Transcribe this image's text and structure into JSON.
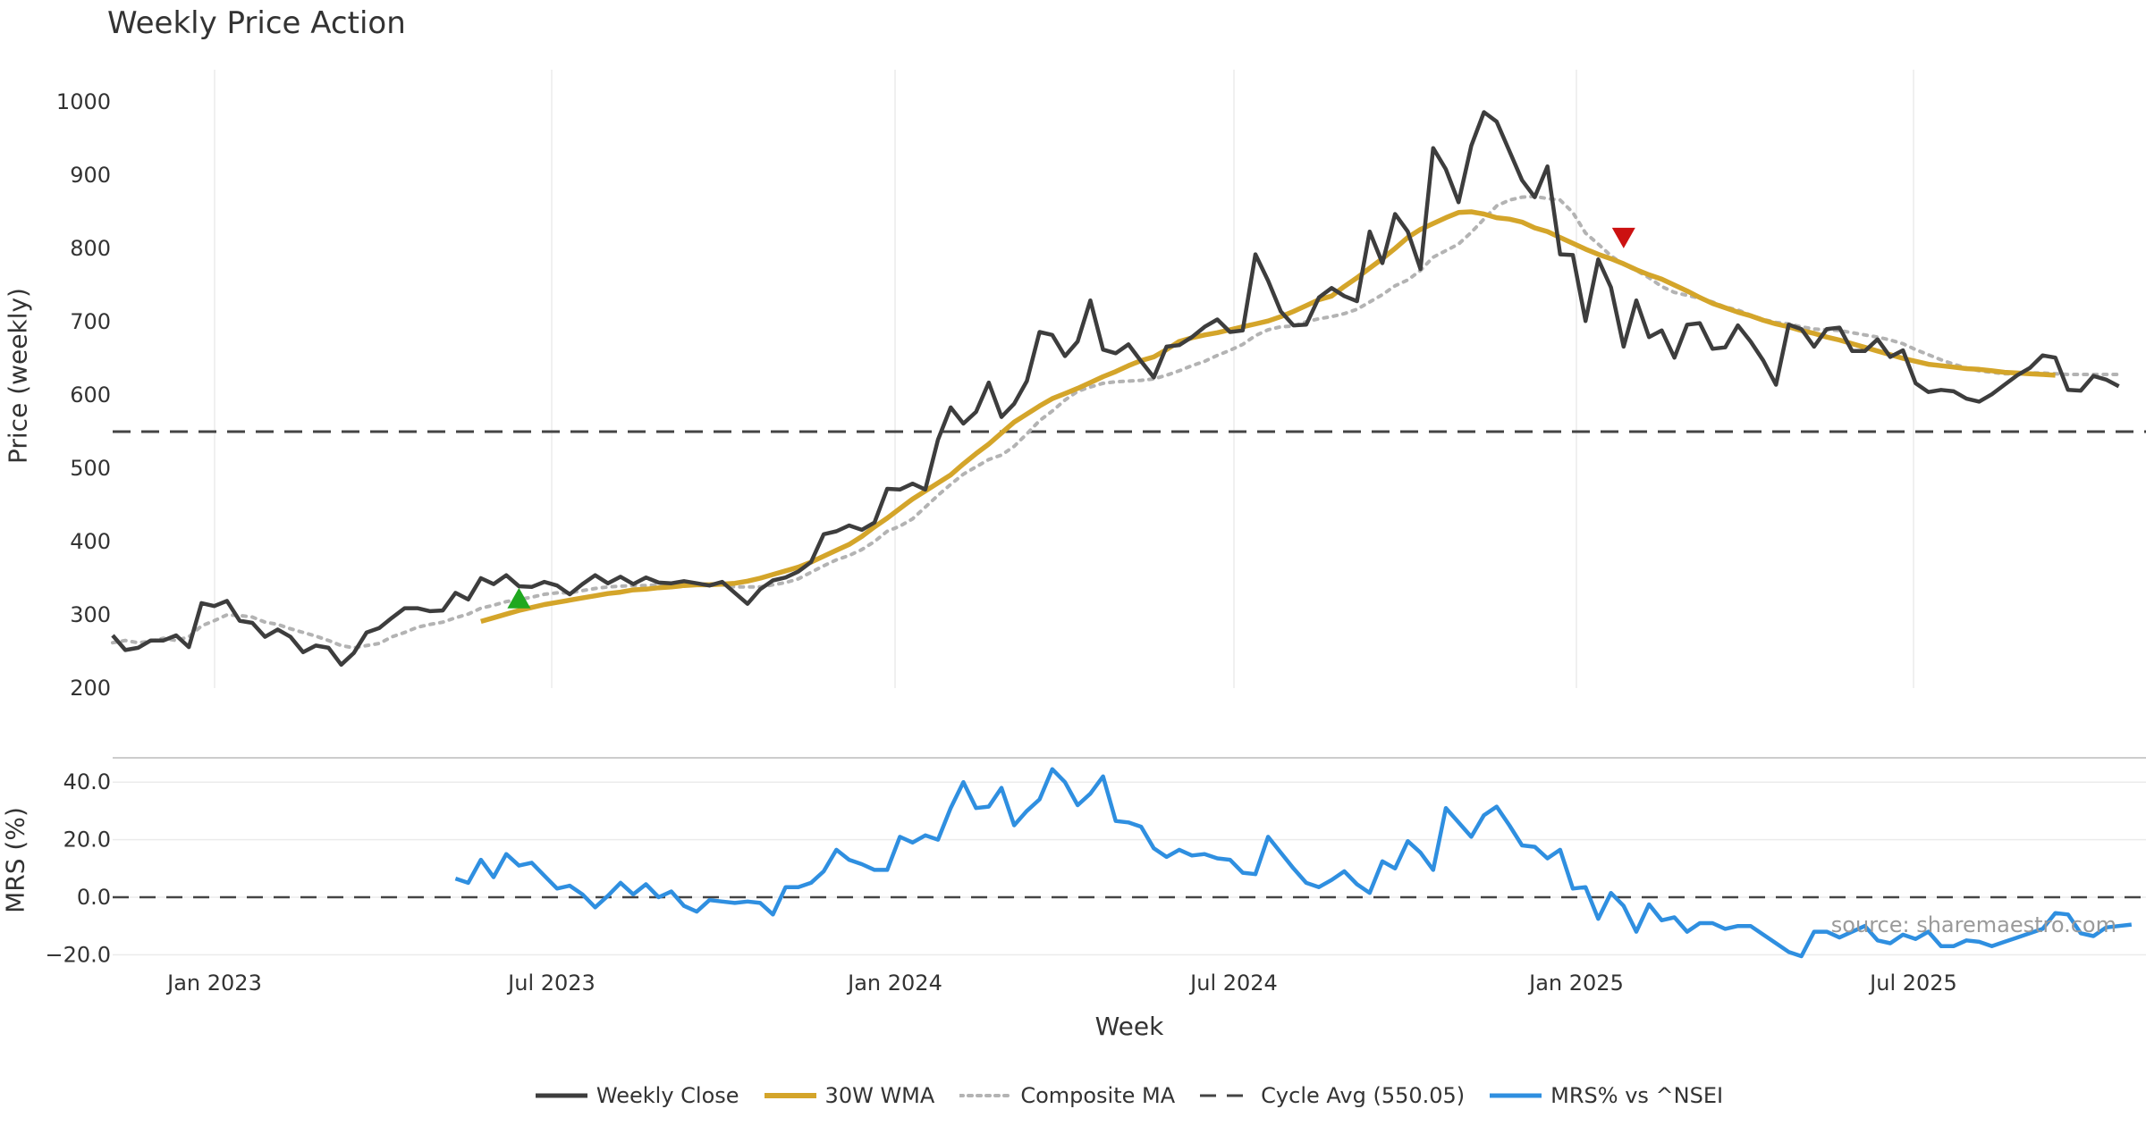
{
  "title": "Weekly Price Action",
  "source_note": "source: sharemaestro.com",
  "colors": {
    "price": "#3d3d3d",
    "wma": "#d4a52a",
    "composite": "#b3b3b3",
    "cycle": "#444444",
    "mrs": "#2f8fe0",
    "buy": "#1fa81f",
    "sell": "#cc1111",
    "grid": "#ebebeb"
  },
  "chart_data": {
    "type": "line",
    "title": "Weekly Price Action",
    "xlabel": "Week",
    "x_ticks": [
      "Jan 2023",
      "Jul 2023",
      "Jan 2024",
      "Jul 2024",
      "Jan 2025",
      "Jul 2025"
    ],
    "price_panel": {
      "ylabel": "Price (weekly)",
      "ylim": [
        200,
        1030
      ],
      "yticks": [
        "200",
        "300",
        "400",
        "500",
        "600",
        "700",
        "800",
        "900",
        "1000"
      ],
      "cycle_average": 550.05,
      "series": [
        {
          "name": "Weekly Close",
          "values": [
            272,
            252,
            255,
            265,
            265,
            272,
            256,
            316,
            312,
            319,
            292,
            289,
            270,
            280,
            270,
            249,
            258,
            255,
            232,
            248,
            276,
            282,
            296,
            309,
            309,
            305,
            306,
            330,
            321,
            350,
            342,
            354,
            339,
            338,
            345,
            340,
            328,
            342,
            354,
            343,
            352,
            342,
            351,
            344,
            343,
            346,
            343,
            340,
            345,
            330,
            315,
            335,
            347,
            351,
            359,
            372,
            410,
            414,
            422,
            416,
            426,
            472,
            471,
            479,
            471,
            539,
            583,
            561,
            577,
            617,
            570,
            588,
            619,
            686,
            682,
            653,
            673,
            729,
            662,
            657,
            669,
            646,
            624,
            666,
            668,
            679,
            693,
            703,
            686,
            688,
            792,
            756,
            714,
            695,
            696,
            733,
            746,
            735,
            728,
            823,
            780,
            847,
            823,
            772,
            937,
            908,
            863,
            940,
            986,
            973,
            933,
            893,
            870,
            912,
            792,
            791,
            701,
            785,
            747,
            666,
            729,
            679,
            688,
            651,
            696,
            698,
            663,
            665,
            695,
            673,
            647,
            614,
            696,
            690,
            666,
            690,
            692,
            660,
            660,
            676,
            652,
            661,
            616,
            604,
            607,
            605,
            595,
            591,
            601,
            614,
            627,
            637,
            654,
            651,
            607,
            606,
            626,
            621,
            612
          ]
        },
        {
          "name": "30W WMA",
          "start_index": 29,
          "values": [
            291,
            296,
            301,
            306,
            310,
            314,
            317,
            320,
            323,
            326,
            329,
            331,
            334,
            335,
            337,
            338,
            340,
            341,
            341,
            342,
            343,
            346,
            350,
            355,
            360,
            365,
            372,
            380,
            388,
            396,
            407,
            420,
            432,
            445,
            458,
            469,
            480,
            491,
            506,
            520,
            533,
            548,
            563,
            574,
            585,
            595,
            602,
            609,
            617,
            625,
            632,
            640,
            647,
            652,
            662,
            673,
            678,
            682,
            685,
            689,
            693,
            697,
            701,
            707,
            714,
            722,
            730,
            735,
            748,
            760,
            773,
            786,
            800,
            815,
            826,
            834,
            842,
            849,
            850,
            847,
            842,
            840,
            836,
            828,
            823,
            815,
            807,
            799,
            792,
            786,
            779,
            771,
            764,
            758,
            750,
            742,
            733,
            725,
            719,
            713,
            708,
            702,
            697,
            693,
            688,
            684,
            679,
            675,
            670,
            665,
            660,
            655,
            650,
            646,
            642,
            640,
            638,
            636,
            635,
            633,
            631,
            630,
            629,
            628,
            627
          ]
        },
        {
          "name": "Composite MA",
          "values": [
            262,
            265,
            262,
            264,
            268,
            265,
            270,
            285,
            292,
            300,
            299,
            297,
            290,
            287,
            281,
            276,
            271,
            265,
            258,
            255,
            258,
            261,
            270,
            276,
            283,
            287,
            290,
            296,
            301,
            309,
            313,
            318,
            321,
            324,
            328,
            330,
            330,
            333,
            336,
            338,
            339,
            340,
            340,
            341,
            341,
            341,
            341,
            341,
            341,
            338,
            338,
            338,
            341,
            344,
            349,
            358,
            367,
            375,
            381,
            389,
            400,
            414,
            421,
            431,
            447,
            463,
            478,
            492,
            502,
            512,
            518,
            530,
            547,
            565,
            578,
            593,
            605,
            611,
            616,
            618,
            619,
            620,
            622,
            627,
            633,
            640,
            646,
            654,
            661,
            669,
            681,
            689,
            693,
            694,
            700,
            704,
            707,
            711,
            717,
            727,
            737,
            749,
            757,
            770,
            788,
            797,
            806,
            822,
            840,
            858,
            866,
            870,
            871,
            868,
            866,
            849,
            821,
            806,
            790,
            778,
            770,
            760,
            748,
            740,
            736,
            732,
            727,
            720,
            716,
            709,
            703,
            699,
            697,
            693,
            690,
            689,
            688,
            685,
            682,
            679,
            675,
            670,
            662,
            655,
            648,
            642,
            637,
            633,
            631,
            629,
            629,
            630,
            630,
            629,
            628,
            628,
            628,
            628,
            628
          ]
        }
      ],
      "signals": [
        {
          "type": "buy",
          "week_index": 32,
          "value": 321
        },
        {
          "type": "sell",
          "week_index": 119,
          "value": 816
        }
      ]
    },
    "mrs_panel": {
      "ylabel": "MRS (%)",
      "ylim": [
        -20,
        45
      ],
      "yticks": [
        "−20.0",
        "0.0",
        "20.0",
        "40.0"
      ],
      "series": [
        {
          "name": "MRS% vs ^NSEI",
          "start_index": 27,
          "values": [
            6.5,
            5,
            13,
            7,
            15,
            11,
            12,
            7.5,
            3,
            4,
            1,
            -3.5,
            0.5,
            5,
            1,
            4.5,
            0,
            2,
            -3,
            -5,
            -1,
            -1.5,
            -2,
            -1.5,
            -2,
            -6,
            3.5,
            3.5,
            5,
            9,
            16.5,
            13,
            11.5,
            9.5,
            9.5,
            21,
            19,
            21.5,
            20,
            31,
            40,
            31,
            31.5,
            38,
            25,
            30,
            34,
            44.5,
            40,
            32,
            36,
            42,
            26.5,
            26,
            24.5,
            17,
            14,
            16.5,
            14.5,
            15,
            13.5,
            13,
            8.5,
            8,
            21,
            15.5,
            10,
            5,
            3.5,
            6,
            9,
            4.5,
            1.5,
            12.5,
            10,
            19.5,
            15.5,
            9.5,
            31,
            26,
            21,
            28.5,
            31.5,
            25,
            18,
            17.5,
            13.5,
            16.5,
            3,
            3.5,
            -7.5,
            1.5,
            -3,
            -12,
            -2.5,
            -8,
            -7,
            -12,
            -9,
            -9,
            -11,
            -10,
            -10,
            -13,
            -16,
            -19,
            -20.5,
            -12,
            -12,
            -14,
            -12,
            -10,
            -15,
            -16,
            -13,
            -14.5,
            -12,
            -17,
            -17,
            -15,
            -15.5,
            -17,
            -15.5,
            -14,
            -12.5,
            -11,
            -5.5,
            -6,
            -12.5,
            -13.5,
            -10.5,
            -10,
            -9.5
          ]
        }
      ]
    },
    "legend": [
      "Weekly Close",
      "30W WMA",
      "Composite MA",
      "Cycle Avg (550.05)",
      "MRS% vs ^NSEI"
    ]
  }
}
